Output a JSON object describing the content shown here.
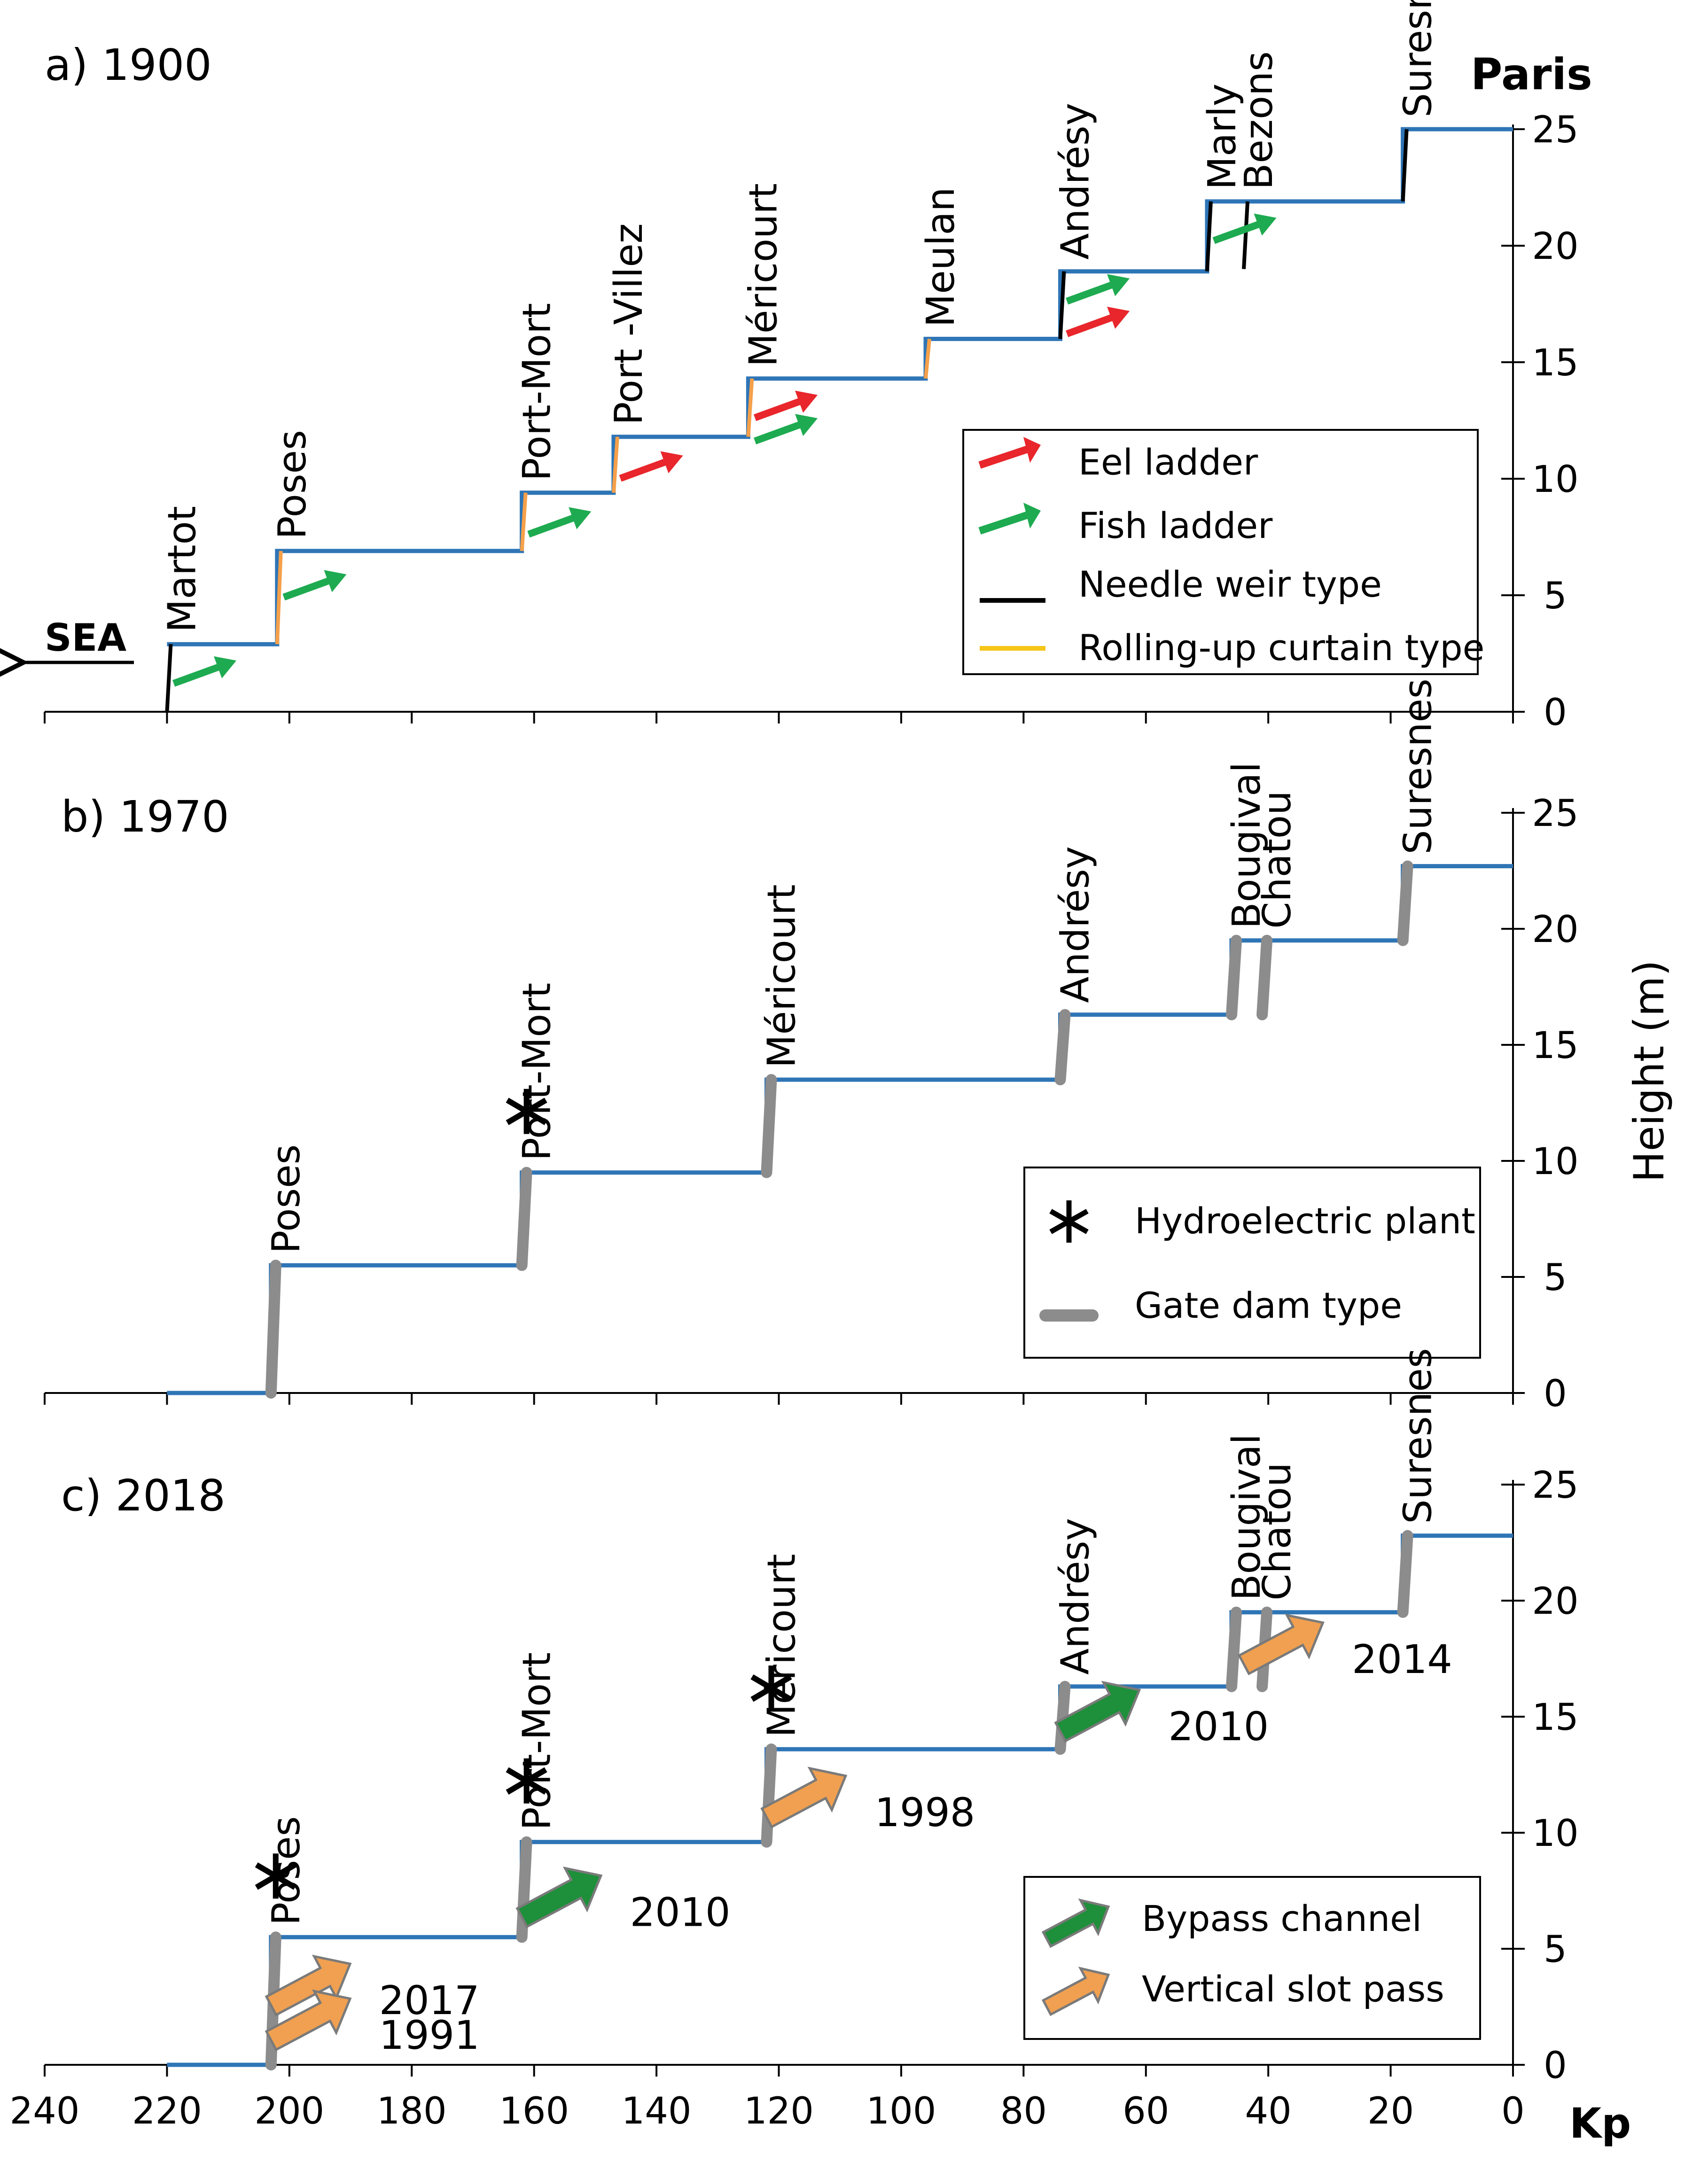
{
  "chart_data": [
    {
      "type": "line",
      "panel_title": "a) 1900",
      "xlabel": "Kp",
      "ylabel": "Height (m)",
      "xlim": [
        240,
        0
      ],
      "ylim": [
        0,
        25
      ],
      "yticks": [
        "0",
        "5",
        "10",
        "15",
        "20",
        "25"
      ],
      "top_label": "Paris",
      "sea_label": "SEA",
      "water_profile": [
        [
          220,
          2.9
        ],
        [
          202,
          2.9
        ],
        [
          202,
          6.9
        ],
        [
          162,
          6.9
        ],
        [
          162,
          9.4
        ],
        [
          147,
          9.4
        ],
        [
          147,
          11.8
        ],
        [
          125,
          11.8
        ],
        [
          125,
          14.3
        ],
        [
          96,
          14.3
        ],
        [
          96,
          16
        ],
        [
          74,
          16
        ],
        [
          74,
          18.9
        ],
        [
          50,
          18.9
        ],
        [
          50,
          21.9
        ],
        [
          18,
          21.9
        ],
        [
          18,
          25
        ],
        [
          0,
          25
        ]
      ],
      "dams": [
        {
          "name": "Martot",
          "kp": 220,
          "type": "Needle weir type",
          "low": 0,
          "high": 2.9
        },
        {
          "name": "Poses",
          "kp": 202,
          "type": "Rolling-up curtain type",
          "low": 2.9,
          "high": 6.9
        },
        {
          "name": "Port-Mort",
          "kp": 162,
          "type": "Rolling-up curtain type",
          "low": 6.9,
          "high": 9.4
        },
        {
          "name": "Port -Villez",
          "kp": 147,
          "type": "Rolling-up curtain type",
          "low": 9.4,
          "high": 11.8
        },
        {
          "name": "Méricourt",
          "kp": 125,
          "type": "Rolling-up curtain type",
          "low": 11.8,
          "high": 14.3
        },
        {
          "name": "Meulan",
          "kp": 96,
          "type": "Rolling-up curtain type",
          "low": 14.3,
          "high": 16
        },
        {
          "name": "Andrésy",
          "kp": 74,
          "type": "Needle weir type",
          "low": 16,
          "high": 18.9
        },
        {
          "name": "Marly",
          "kp": 50,
          "type": "Needle weir type",
          "low": 18.9,
          "high": 21.9
        },
        {
          "name": "Bezons",
          "kp": 44,
          "type": "Needle weir type",
          "low": 19,
          "high": 21.9
        },
        {
          "name": "Suresnes",
          "kp": 18,
          "type": "Needle weir type",
          "low": 21.9,
          "high": 25
        }
      ],
      "passes": [
        {
          "type": "Fish ladder",
          "kp": 220,
          "height": 1.7
        },
        {
          "type": "Fish ladder",
          "kp": 202,
          "height": 5.4
        },
        {
          "type": "Fish ladder",
          "kp": 162,
          "height": 8.1
        },
        {
          "type": "Eel ladder",
          "kp": 147,
          "height": 10.5
        },
        {
          "type": "Eel ladder",
          "kp": 125,
          "height": 13.1
        },
        {
          "type": "Fish ladder",
          "kp": 125,
          "height": 12.1
        },
        {
          "type": "Eel ladder",
          "kp": 74,
          "height": 16.7
        },
        {
          "type": "Fish ladder",
          "kp": 74,
          "height": 18.1
        },
        {
          "type": "Fish ladder",
          "kp": 50,
          "height": 20.7
        }
      ],
      "legend": [
        {
          "label": "Eel ladder",
          "color": "#e8262b"
        },
        {
          "label": "Fish ladder",
          "color": "#1eaa50"
        },
        {
          "label": "Needle weir type",
          "color": "#000000"
        },
        {
          "label": "Rolling-up curtain type",
          "color": "#f5c518"
        }
      ]
    },
    {
      "type": "line",
      "panel_title": "b) 1970",
      "xlabel": "Kp",
      "ylabel": "Height (m)",
      "xlim": [
        240,
        0
      ],
      "ylim": [
        0,
        25
      ],
      "yticks": [
        "0",
        "5",
        "10",
        "15",
        "20",
        "25"
      ],
      "water_profile": [
        [
          220,
          0
        ],
        [
          203,
          0
        ],
        [
          203,
          5.5
        ],
        [
          162,
          5.5
        ],
        [
          162,
          9.5
        ],
        [
          122,
          9.5
        ],
        [
          122,
          13.5
        ],
        [
          74,
          13.5
        ],
        [
          74,
          16.3
        ],
        [
          46,
          16.3
        ],
        [
          46,
          19.5
        ],
        [
          18,
          19.5
        ],
        [
          18,
          22.7
        ],
        [
          0,
          22.7
        ]
      ],
      "dams": [
        {
          "name": "Poses",
          "kp": 203,
          "type": "Gate dam type",
          "low": 0,
          "high": 5.5
        },
        {
          "name": "Port-Mort",
          "kp": 162,
          "type": "Gate dam type",
          "low": 5.5,
          "high": 9.5,
          "hydro": true
        },
        {
          "name": "Méricourt",
          "kp": 122,
          "type": "Gate dam type",
          "low": 9.5,
          "high": 13.5
        },
        {
          "name": "Andrésy",
          "kp": 74,
          "type": "Gate dam type",
          "low": 13.5,
          "high": 16.3
        },
        {
          "name": "Bougival",
          "kp": 46,
          "type": "Gate dam type",
          "low": 16.3,
          "high": 19.5
        },
        {
          "name": "Chatou",
          "kp": 41,
          "type": "Gate dam type",
          "low": 16.3,
          "high": 19.5
        },
        {
          "name": "Suresnes",
          "kp": 18,
          "type": "Gate dam type",
          "low": 19.5,
          "high": 22.7
        }
      ],
      "legend": [
        {
          "label": "Hydroelectric plant",
          "color": "#000000"
        },
        {
          "label": "Gate dam type",
          "color": "#8c8c8c"
        }
      ]
    },
    {
      "type": "line",
      "panel_title": "c) 2018",
      "xlabel": "Kp",
      "ylabel": "Height (m)",
      "xlim": [
        240,
        0
      ],
      "ylim": [
        0,
        25
      ],
      "yticks": [
        "0",
        "5",
        "10",
        "15",
        "20",
        "25"
      ],
      "xticks": [
        "240",
        "220",
        "200",
        "180",
        "160",
        "140",
        "120",
        "100",
        "80",
        "60",
        "40",
        "20",
        "0"
      ],
      "water_profile": [
        [
          220,
          0
        ],
        [
          203,
          0
        ],
        [
          203,
          5.5
        ],
        [
          162,
          5.5
        ],
        [
          162,
          9.6
        ],
        [
          122,
          9.6
        ],
        [
          122,
          13.6
        ],
        [
          74,
          13.6
        ],
        [
          74,
          16.3
        ],
        [
          46,
          16.3
        ],
        [
          46,
          19.5
        ],
        [
          18,
          19.5
        ],
        [
          18,
          22.8
        ],
        [
          0,
          22.8
        ]
      ],
      "dams": [
        {
          "name": "Poses",
          "kp": 203,
          "type": "Gate dam type",
          "low": 0,
          "high": 5.5,
          "hydro": true
        },
        {
          "name": "Port-Mort",
          "kp": 162,
          "type": "Gate dam type",
          "low": 5.5,
          "high": 9.6,
          "hydro": true
        },
        {
          "name": "Méricourt",
          "kp": 122,
          "type": "Gate dam type",
          "low": 9.6,
          "high": 13.6,
          "hydro": true
        },
        {
          "name": "Andrésy",
          "kp": 74,
          "type": "Gate dam type",
          "low": 13.6,
          "high": 16.3
        },
        {
          "name": "Bougival",
          "kp": 46,
          "type": "Gate dam type",
          "low": 16.3,
          "high": 19.5
        },
        {
          "name": "Chatou",
          "kp": 41,
          "type": "Gate dam type",
          "low": 16.3,
          "high": 19.5
        },
        {
          "name": "Suresnes",
          "kp": 18,
          "type": "Gate dam type",
          "low": 19.5,
          "high": 22.8
        }
      ],
      "passes": [
        {
          "type": "Vertical slot pass",
          "kp": 203,
          "height": 3.4,
          "year": "2017"
        },
        {
          "type": "Vertical slot pass",
          "kp": 203,
          "height": 1.9,
          "year": "1991"
        },
        {
          "type": "Bypass channel",
          "kp": 162,
          "height": 7.2,
          "year": "2010"
        },
        {
          "type": "Vertical slot pass",
          "kp": 122,
          "height": 11.5,
          "year": "1998"
        },
        {
          "type": "Bypass channel",
          "kp": 74,
          "height": 15.2,
          "year": "2010"
        },
        {
          "type": "Vertical slot pass",
          "kp": 44,
          "height": 18.1,
          "year": "2014"
        }
      ],
      "legend": [
        {
          "label": "Bypass channel",
          "color": "#1e8f3a"
        },
        {
          "label": "Vertical slot pass",
          "color": "#f0a050"
        }
      ]
    }
  ],
  "colors": {
    "water": "#2e75b6",
    "needle": "#000000",
    "curtain": "#f5a04a",
    "gate": "#8c8c8c",
    "eel": "#e8262b",
    "fish": "#1eaa50",
    "bypass": "#1e8f3a",
    "slot": "#f0a050"
  }
}
